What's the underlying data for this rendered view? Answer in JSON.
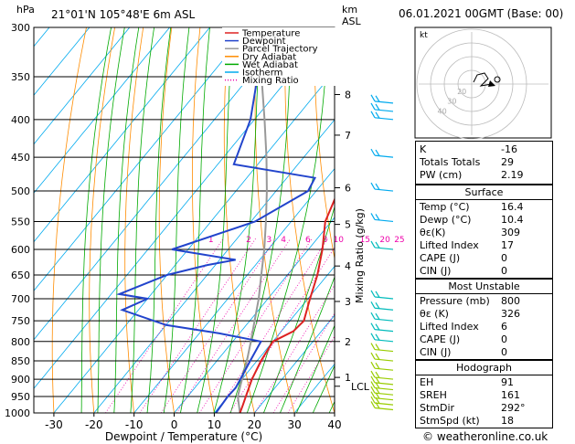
{
  "header": {
    "location": "21°01'N  105°48'E  6m  ASL",
    "datetime": "06.01.2021  00GMT  (Base: 00)",
    "units_p": "hPa",
    "units_km": "km",
    "units_asl": "ASL"
  },
  "colors": {
    "temperature": "#dd2222",
    "dewpoint": "#2244cc",
    "parcel": "#999999",
    "dry_adiabat": "#ff8c00",
    "wet_adiabat": "#00aa00",
    "isotherm": "#00aaee",
    "mixing_ratio": "#ee00aa"
  },
  "legend": [
    {
      "label": "Temperature",
      "color": "#dd2222",
      "dash": ""
    },
    {
      "label": "Dewpoint",
      "color": "#2244cc",
      "dash": ""
    },
    {
      "label": "Parcel Trajectory",
      "color": "#999999",
      "dash": ""
    },
    {
      "label": "Dry Adiabat",
      "color": "#ff8c00",
      "dash": ""
    },
    {
      "label": "Wet Adiabat",
      "color": "#00aa00",
      "dash": ""
    },
    {
      "label": "Isotherm",
      "color": "#00aaee",
      "dash": ""
    },
    {
      "label": "Mixing Ratio",
      "color": "#ee00aa",
      "dash": "1,2"
    }
  ],
  "chart_data": {
    "type": "line",
    "xlabel": "Dewpoint / Temperature (°C)",
    "ylabel_right": "Mixing Ratio (g/kg)",
    "x_ticks": [
      -30,
      -20,
      -10,
      0,
      10,
      20,
      30,
      40
    ],
    "xlim": [
      -35,
      40
    ],
    "ylim_hpa": [
      1000,
      300
    ],
    "pressure_levels": [
      300,
      350,
      400,
      450,
      500,
      550,
      600,
      650,
      700,
      750,
      800,
      850,
      900,
      950,
      1000
    ],
    "km_ticks": [
      {
        "label": "8",
        "p": 370
      },
      {
        "label": "7",
        "p": 420
      },
      {
        "label": "6",
        "p": 495
      },
      {
        "label": "5",
        "p": 555
      },
      {
        "label": "4",
        "p": 632
      },
      {
        "label": "3",
        "p": 706
      },
      {
        "label": "2",
        "p": 800
      },
      {
        "label": "1",
        "p": 895
      },
      {
        "label": "LCL",
        "p": 920
      }
    ],
    "mixing_ratio_labels": [
      {
        "label": "1",
        "p": 590,
        "t": -25.4
      },
      {
        "label": "2",
        "p": 590,
        "t": -16
      },
      {
        "label": "3",
        "p": 590,
        "t": -10.9
      },
      {
        "label": "4",
        "p": 590,
        "t": -7.3
      },
      {
        "label": "6",
        "p": 590,
        "t": -1.2
      },
      {
        "label": "8",
        "p": 590,
        "t": 3
      },
      {
        "label": "10",
        "p": 590,
        "t": 6.4
      },
      {
        "label": "15",
        "p": 590,
        "t": 13
      },
      {
        "label": "20",
        "p": 590,
        "t": 18
      },
      {
        "label": "25",
        "p": 590,
        "t": 21.6
      }
    ],
    "series": [
      {
        "name": "Temperature",
        "points": [
          {
            "p": 1000,
            "t": 16.4
          },
          {
            "p": 975,
            "t": 15.5
          },
          {
            "p": 950,
            "t": 14.5
          },
          {
            "p": 925,
            "t": 13.5
          },
          {
            "p": 900,
            "t": 12.5
          },
          {
            "p": 850,
            "t": 11
          },
          {
            "p": 800,
            "t": 10
          },
          {
            "p": 775,
            "t": 13
          },
          {
            "p": 750,
            "t": 13.5
          },
          {
            "p": 700,
            "t": 10.5
          },
          {
            "p": 650,
            "t": 7.5
          },
          {
            "p": 600,
            "t": 3.5
          },
          {
            "p": 550,
            "t": -1.5
          },
          {
            "p": 500,
            "t": -4.5
          },
          {
            "p": 470,
            "t": -7.5
          },
          {
            "p": 450,
            "t": -7.5
          },
          {
            "p": 400,
            "t": -14
          },
          {
            "p": 350,
            "t": -21
          },
          {
            "p": 300,
            "t": -29
          }
        ]
      },
      {
        "name": "Dewpoint",
        "points": [
          {
            "p": 1000,
            "t": 10.4
          },
          {
            "p": 950,
            "t": 10
          },
          {
            "p": 925,
            "t": 10.2
          },
          {
            "p": 900,
            "t": 9.6
          },
          {
            "p": 850,
            "t": 8.3
          },
          {
            "p": 800,
            "t": 7
          },
          {
            "p": 780,
            "t": -5
          },
          {
            "p": 760,
            "t": -20
          },
          {
            "p": 725,
            "t": -34
          },
          {
            "p": 700,
            "t": -30
          },
          {
            "p": 690,
            "t": -38
          },
          {
            "p": 650,
            "t": -30
          },
          {
            "p": 630,
            "t": -22
          },
          {
            "p": 620,
            "t": -16
          },
          {
            "p": 600,
            "t": -34
          },
          {
            "p": 550,
            "t": -19
          },
          {
            "p": 500,
            "t": -12
          },
          {
            "p": 480,
            "t": -13
          },
          {
            "p": 460,
            "t": -36
          },
          {
            "p": 400,
            "t": -41
          },
          {
            "p": 350,
            "t": -48
          },
          {
            "p": 340,
            "t": -52
          },
          {
            "p": 300,
            "t": -60
          }
        ]
      },
      {
        "name": "Parcel Trajectory",
        "points": [
          {
            "p": 1000,
            "t": 16.4
          },
          {
            "p": 950,
            "t": 12.5
          },
          {
            "p": 920,
            "t": 11
          },
          {
            "p": 850,
            "t": 7.5
          },
          {
            "p": 800,
            "t": 4.5
          },
          {
            "p": 750,
            "t": 1.2
          },
          {
            "p": 700,
            "t": -2.3
          },
          {
            "p": 650,
            "t": -6.5
          },
          {
            "p": 600,
            "t": -11
          },
          {
            "p": 550,
            "t": -16.3
          },
          {
            "p": 500,
            "t": -22.3
          },
          {
            "p": 450,
            "t": -29.3
          },
          {
            "p": 400,
            "t": -37.5
          },
          {
            "p": 350,
            "t": -47
          },
          {
            "p": 300,
            "t": -58
          }
        ]
      }
    ]
  },
  "hodograph": {
    "unit": "kt",
    "ring_labels": [
      "40",
      "30",
      "20"
    ]
  },
  "indices": [
    {
      "label": "K",
      "value": "-16"
    },
    {
      "label": "Totals Totals",
      "value": "29"
    },
    {
      "label": "PW (cm)",
      "value": "2.19"
    }
  ],
  "surface": {
    "title": "Surface",
    "rows": [
      {
        "label": "Temp (°C)",
        "value": "16.4"
      },
      {
        "label": "Dewp (°C)",
        "value": "10.4"
      },
      {
        "label": "θε(K)",
        "value": "309"
      },
      {
        "label": "Lifted Index",
        "value": "17"
      },
      {
        "label": "CAPE (J)",
        "value": "0"
      },
      {
        "label": "CIN (J)",
        "value": "0"
      }
    ]
  },
  "most_unstable": {
    "title": "Most Unstable",
    "rows": [
      {
        "label": "Pressure (mb)",
        "value": "800"
      },
      {
        "label": "θε (K)",
        "value": "326"
      },
      {
        "label": "Lifted Index",
        "value": "6"
      },
      {
        "label": "CAPE (J)",
        "value": "0"
      },
      {
        "label": "CIN (J)",
        "value": "0"
      }
    ]
  },
  "hodograph_table": {
    "title": "Hodograph",
    "rows": [
      {
        "label": "EH",
        "value": "91"
      },
      {
        "label": "SREH",
        "value": "161"
      },
      {
        "label": "StmDir",
        "value": "292°"
      },
      {
        "label": "StmSpd (kt)",
        "value": "18"
      }
    ]
  },
  "footer": "© weatheronline.co.uk"
}
